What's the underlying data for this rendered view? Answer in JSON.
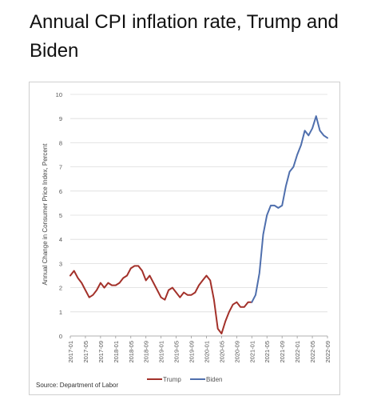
{
  "title": "Annual CPI inflation rate, Trump and Biden",
  "source": "Source: Department of Labor",
  "chart_data": {
    "type": "line",
    "title": "",
    "xlabel": "",
    "ylabel": "Annual Change in Consumer Price Index, Percent",
    "ylim": [
      0,
      10
    ],
    "yticks": [
      0,
      1,
      2,
      3,
      4,
      5,
      6,
      7,
      8,
      9,
      10
    ],
    "grid": true,
    "legend": "bottom-center",
    "x_tick_labels": [
      "2017-01",
      "2017-05",
      "2017-09",
      "2018-01",
      "2018-05",
      "2018-09",
      "2019-01",
      "2019-05",
      "2019-09",
      "2020-01",
      "2020-05",
      "2020-09",
      "2021-01",
      "2021-05",
      "2021-09",
      "2022-01",
      "2022-05",
      "2022-09"
    ],
    "series": [
      {
        "name": "Trump",
        "color": "#a3312a",
        "x": [
          "2017-01",
          "2017-02",
          "2017-03",
          "2017-04",
          "2017-05",
          "2017-06",
          "2017-07",
          "2017-08",
          "2017-09",
          "2017-10",
          "2017-11",
          "2017-12",
          "2018-01",
          "2018-02",
          "2018-03",
          "2018-04",
          "2018-05",
          "2018-06",
          "2018-07",
          "2018-08",
          "2018-09",
          "2018-10",
          "2018-11",
          "2018-12",
          "2019-01",
          "2019-02",
          "2019-03",
          "2019-04",
          "2019-05",
          "2019-06",
          "2019-07",
          "2019-08",
          "2019-09",
          "2019-10",
          "2019-11",
          "2019-12",
          "2020-01",
          "2020-02",
          "2020-03",
          "2020-04",
          "2020-05",
          "2020-06",
          "2020-07",
          "2020-08",
          "2020-09",
          "2020-10",
          "2020-11",
          "2020-12",
          "2021-01"
        ],
        "values": [
          2.5,
          2.7,
          2.4,
          2.2,
          1.9,
          1.6,
          1.7,
          1.9,
          2.2,
          2.0,
          2.2,
          2.1,
          2.1,
          2.2,
          2.4,
          2.5,
          2.8,
          2.9,
          2.9,
          2.7,
          2.3,
          2.5,
          2.2,
          1.9,
          1.6,
          1.5,
          1.9,
          2.0,
          1.8,
          1.6,
          1.8,
          1.7,
          1.7,
          1.8,
          2.1,
          2.3,
          2.5,
          2.3,
          1.5,
          0.3,
          0.1,
          0.6,
          1.0,
          1.3,
          1.4,
          1.2,
          1.2,
          1.4,
          1.4
        ]
      },
      {
        "name": "Biden",
        "color": "#4f6fad",
        "x": [
          "2021-01",
          "2021-02",
          "2021-03",
          "2021-04",
          "2021-05",
          "2021-06",
          "2021-07",
          "2021-08",
          "2021-09",
          "2021-10",
          "2021-11",
          "2021-12",
          "2022-01",
          "2022-02",
          "2022-03",
          "2022-04",
          "2022-05",
          "2022-06",
          "2022-07",
          "2022-08",
          "2022-09"
        ],
        "values": [
          1.4,
          1.7,
          2.6,
          4.2,
          5.0,
          5.4,
          5.4,
          5.3,
          5.4,
          6.2,
          6.8,
          7.0,
          7.5,
          7.9,
          8.5,
          8.3,
          8.6,
          9.1,
          8.5,
          8.3,
          8.2
        ]
      }
    ]
  }
}
